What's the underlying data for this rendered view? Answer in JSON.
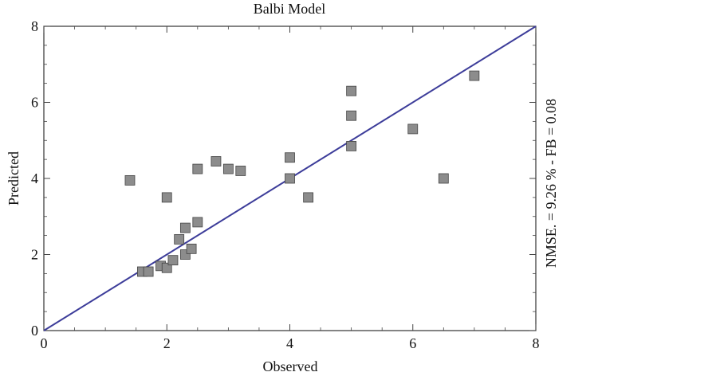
{
  "chart_data": {
    "type": "scatter",
    "title": "Balbi Model",
    "xlabel": "Observed",
    "ylabel": "Predicted",
    "side_annotation": "NMSE. = 9.26 % -  FB = 0.08",
    "xlim": [
      0,
      8
    ],
    "ylim": [
      0,
      8
    ],
    "xticks": [
      "0",
      "2",
      "4",
      "6",
      "8"
    ],
    "yticks": [
      "0",
      "2",
      "4",
      "6",
      "8"
    ],
    "reference_line": {
      "x": [
        0,
        8
      ],
      "y": [
        0,
        8
      ],
      "color": "#3d3d9a"
    },
    "series": [
      {
        "x": [
          1.4,
          1.6,
          1.7,
          1.9,
          2.0,
          2.0,
          2.1,
          2.2,
          2.3,
          2.3,
          2.4,
          2.5,
          2.5,
          2.8,
          3.0,
          3.2,
          4.0,
          4.0,
          4.3,
          5.0,
          5.0,
          5.0,
          6.0,
          6.5,
          7.0
        ],
        "y": [
          3.95,
          1.55,
          1.55,
          1.7,
          1.65,
          3.5,
          1.85,
          2.4,
          2.0,
          2.7,
          2.15,
          2.85,
          4.25,
          4.45,
          4.25,
          4.2,
          4.55,
          4.0,
          3.5,
          4.85,
          5.65,
          6.3,
          5.3,
          4.0,
          6.7
        ],
        "color": "#8c8c8c"
      }
    ],
    "grid": false
  }
}
